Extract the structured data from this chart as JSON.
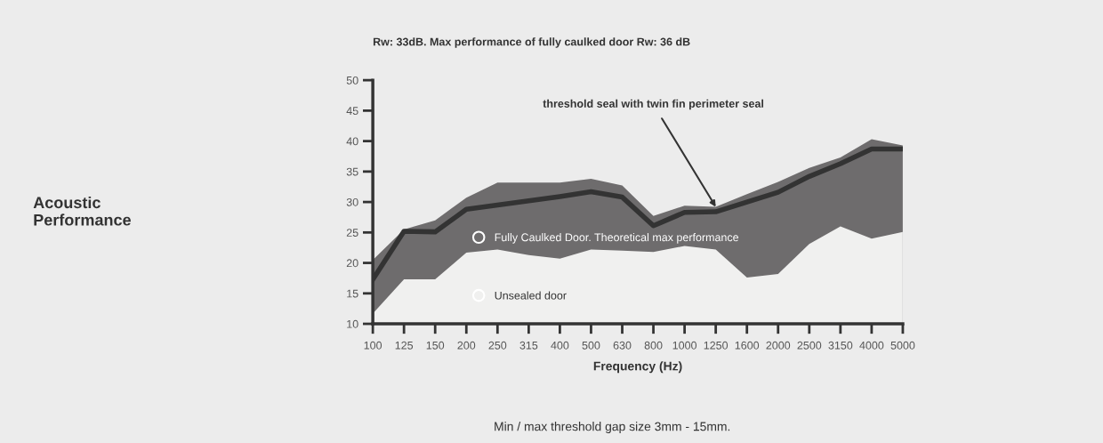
{
  "chart_data": {
    "type": "area",
    "title": "Rw: 33dB. Max performance of fully caulked door Rw: 36 dB",
    "xlabel": "Frequency (Hz)",
    "categories": [
      "100",
      "125",
      "150",
      "200",
      "250",
      "315",
      "400",
      "500",
      "630",
      "800",
      "1000",
      "1250",
      "1600",
      "2000",
      "2500",
      "3150",
      "4000",
      "5000"
    ],
    "series": [
      {
        "name": "Fully Caulked Door. Theoretical max performance",
        "color": "#6e6c6d",
        "values": [
          20.5,
          25.5,
          27,
          30.7,
          33.2,
          33.2,
          33.2,
          33.8,
          32.7,
          27.7,
          29.4,
          29.2,
          31.3,
          33.3,
          35.6,
          37.3,
          40.3,
          39.3
        ]
      },
      {
        "name": "Unsealed door",
        "color": "#f0f0ef",
        "values": [
          11.7,
          17.3,
          17.3,
          21.7,
          22.2,
          21.3,
          20.7,
          22.2,
          22.0,
          21.8,
          22.8,
          22.2,
          17.6,
          18.2,
          23.1,
          26.0,
          24.0,
          25.1
        ]
      },
      {
        "type": "line",
        "color": "#333333",
        "values": [
          17.3,
          25.2,
          25.1,
          28.8,
          29.5,
          30.2,
          30.9,
          31.7,
          30.8,
          26.1,
          28.3,
          28.4,
          30.0,
          31.6,
          34.2,
          36.3,
          38.7,
          38.7
        ]
      }
    ],
    "ylim": [
      10,
      50
    ],
    "yticks": [
      10,
      15,
      20,
      25,
      30,
      35,
      40,
      45,
      50
    ],
    "grid": false,
    "legend": "bottom left",
    "marker": "none",
    "line_style": "solid",
    "annotations": [
      "Acoustic Performance",
      "Min / max threshold gap size 3mm - 15mm.",
      {
        "text": "threshold seal with twin fin perimeter seal",
        "x": "1250",
        "y": 29.2
      }
    ]
  }
}
